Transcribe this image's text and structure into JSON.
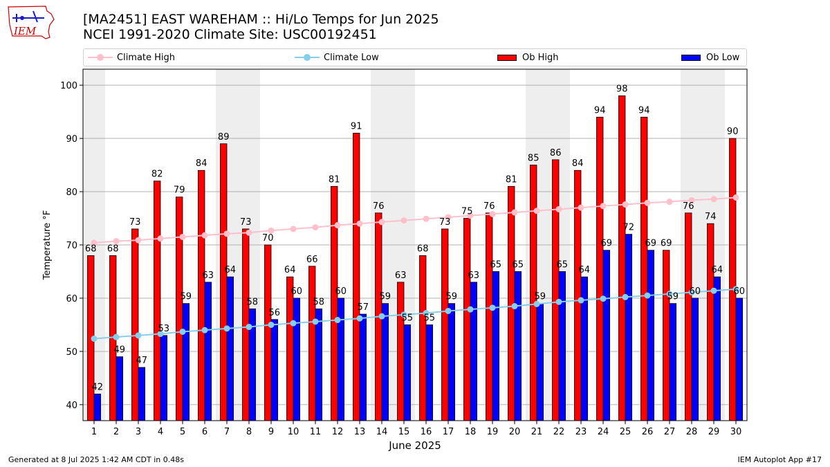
{
  "header": {
    "title_line1": "[MA2451] EAST WAREHAM :: Hi/Lo Temps for Jun 2025",
    "title_line2": "NCEI 1991-2020 Climate Site: USC00192451",
    "logo_text": "IEM"
  },
  "legend": {
    "climate_high": "Climate High",
    "climate_low": "Climate Low",
    "ob_high": "Ob High",
    "ob_low": "Ob Low"
  },
  "footer": {
    "left": "Generated at 8 Jul 2025 1:42 AM CDT in 0.48s",
    "right": "IEM Autoplot App #17"
  },
  "colors": {
    "ob_high": "#ff0000",
    "ob_low": "#0000ff",
    "climate_high": "#ffc0cb",
    "climate_low": "#87ceeb",
    "weekend_shade": "#eeeeee",
    "grid": "#b0b0b0"
  },
  "chart_data": {
    "type": "bar",
    "xlabel": "June 2025",
    "ylabel": "Temperature °F",
    "ylim": [
      37,
      103
    ],
    "yticks": [
      40,
      50,
      60,
      70,
      80,
      90,
      100
    ],
    "grid": "horizontal",
    "legend_position": "top",
    "categories": [
      "1",
      "2",
      "3",
      "4",
      "5",
      "6",
      "7",
      "8",
      "9",
      "10",
      "11",
      "12",
      "13",
      "14",
      "15",
      "16",
      "17",
      "18",
      "19",
      "20",
      "21",
      "22",
      "23",
      "24",
      "25",
      "26",
      "27",
      "28",
      "29",
      "30"
    ],
    "shaded_days": [
      1,
      7,
      8,
      14,
      15,
      21,
      22,
      28,
      29
    ],
    "series": [
      {
        "name": "Ob High",
        "kind": "bar",
        "values": [
          68,
          68,
          73,
          82,
          79,
          84,
          89,
          73,
          70,
          64,
          66,
          81,
          91,
          76,
          63,
          68,
          73,
          75,
          76,
          81,
          85,
          86,
          84,
          94,
          98,
          94,
          69,
          76,
          74,
          90
        ]
      },
      {
        "name": "Ob Low",
        "kind": "bar",
        "values": [
          42,
          49,
          47,
          53,
          59,
          63,
          64,
          58,
          56,
          60,
          58,
          60,
          57,
          59,
          55,
          55,
          59,
          63,
          65,
          65,
          59,
          65,
          64,
          69,
          72,
          69,
          59,
          60,
          64,
          60
        ]
      },
      {
        "name": "Climate High",
        "kind": "line",
        "values": [
          70.4,
          70.7,
          70.9,
          71.2,
          71.5,
          71.8,
          72.1,
          72.3,
          72.7,
          73.0,
          73.3,
          73.7,
          74.0,
          74.3,
          74.6,
          74.9,
          75.2,
          75.5,
          75.8,
          76.1,
          76.4,
          76.7,
          77.0,
          77.3,
          77.6,
          77.9,
          78.1,
          78.4,
          78.6,
          78.9
        ]
      },
      {
        "name": "Climate Low",
        "kind": "line",
        "values": [
          52.4,
          52.7,
          53.0,
          53.3,
          53.7,
          54.0,
          54.3,
          54.6,
          55.0,
          55.3,
          55.6,
          55.9,
          56.2,
          56.6,
          56.9,
          57.2,
          57.6,
          57.9,
          58.2,
          58.5,
          58.9,
          59.3,
          59.6,
          59.9,
          60.2,
          60.5,
          60.8,
          61.1,
          61.4,
          61.7
        ]
      }
    ]
  }
}
